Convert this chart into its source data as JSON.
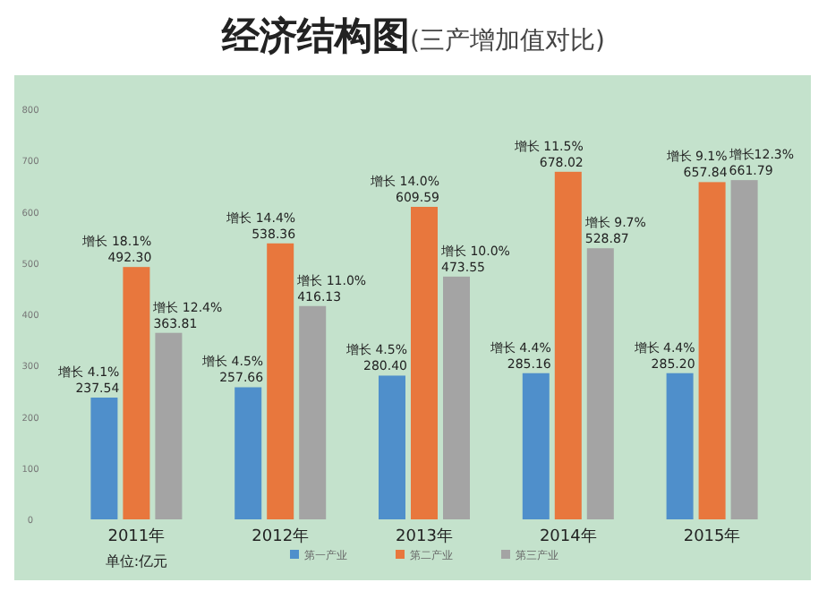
{
  "chart_data": {
    "type": "bar",
    "title": "经济结构图",
    "subtitle": "(三产增加值对比)",
    "categories": [
      "2011年",
      "2012年",
      "2013年",
      "2014年",
      "2015年"
    ],
    "series": [
      {
        "name": "第一产业",
        "color": "#4f8fcb",
        "values": [
          237.54,
          257.66,
          280.4,
          285.16,
          285.2
        ],
        "value_labels": [
          "237.54",
          "257.66",
          "280.40",
          "285.16",
          "285.20"
        ]
      },
      {
        "name": "第二产业",
        "color": "#e8773d",
        "values": [
          492.3,
          538.36,
          609.59,
          678.02,
          657.84
        ],
        "value_labels": [
          "492.30",
          "538.36",
          "609.59",
          "678.02",
          "657.84"
        ]
      },
      {
        "name": "第三产业",
        "color": "#a4a4a4",
        "values": [
          363.81,
          416.13,
          473.55,
          528.87,
          661.79
        ],
        "value_labels": [
          "363.81",
          "416.13",
          "473.55",
          "528.87",
          "661.79"
        ]
      }
    ],
    "ylim": [
      0,
      800
    ],
    "yticks": [
      0,
      100,
      200,
      300,
      400,
      500,
      600,
      700,
      800
    ],
    "legend": "bottom",
    "annotations": [
      "增长 4.1%",
      "增长 18.1%",
      "增长 12.4%",
      "增长 4.5%",
      "增长 14.4%",
      "增长 11.0%",
      "增长 4.5%",
      "增长 14.0%",
      "增长 10.0%",
      "增长 4.4%",
      "增长 11.5%",
      "增长 9.7%",
      "增长 4.4%",
      "增长 9.1%",
      "增长12.3%",
      "单位:亿元"
    ]
  }
}
